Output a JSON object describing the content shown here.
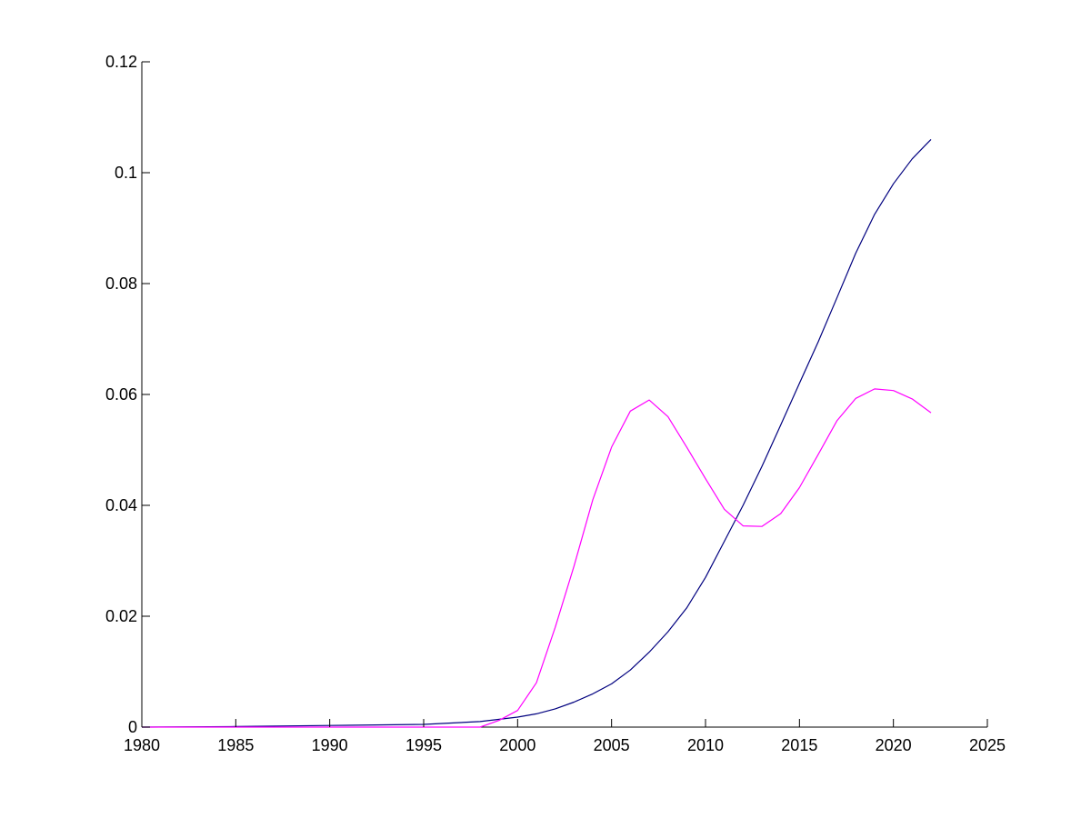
{
  "chart_data": {
    "type": "line",
    "xlim": [
      1980,
      2025
    ],
    "ylim": [
      0,
      0.12
    ],
    "xticks": [
      1980,
      1985,
      1990,
      1995,
      2000,
      2005,
      2010,
      2015,
      2020,
      2025
    ],
    "xtick_labels": [
      "1980",
      "1985",
      "1990",
      "1995",
      "2000",
      "2005",
      "2010",
      "2015",
      "2020",
      "2025"
    ],
    "yticks": [
      0,
      0.02,
      0.04,
      0.06,
      0.08,
      0.1,
      0.12
    ],
    "ytick_labels": [
      "0",
      "0.02",
      "0.04",
      "0.06",
      "0.08",
      "0.1",
      "0.12"
    ],
    "grid": false,
    "legend": "none",
    "series": [
      {
        "color": "#00007f",
        "x": [
          1980,
          1985,
          1990,
          1995,
          1998,
          2000,
          2001,
          2002,
          2003,
          2004,
          2005,
          2006,
          2007,
          2008,
          2009,
          2010,
          2011,
          2012,
          2013,
          2014,
          2015,
          2016,
          2017,
          2018,
          2019,
          2020,
          2021,
          2022
        ],
        "y": [
          0,
          0.0001,
          0.0003,
          0.0005,
          0.001,
          0.0018,
          0.0024,
          0.0033,
          0.0045,
          0.006,
          0.0078,
          0.0103,
          0.0135,
          0.0172,
          0.0215,
          0.027,
          0.0335,
          0.04,
          0.047,
          0.0545,
          0.062,
          0.0695,
          0.0775,
          0.0855,
          0.0925,
          0.098,
          0.1025,
          0.106
        ]
      },
      {
        "color": "#ff00ff",
        "x": [
          1980,
          1998,
          1999,
          2000,
          2001,
          2002,
          2003,
          2004,
          2005,
          2006,
          2007,
          2008,
          2009,
          2010,
          2011,
          2012,
          2013,
          2014,
          2015,
          2016,
          2017,
          2018,
          2019,
          2020,
          2021,
          2022
        ],
        "y": [
          0,
          0,
          0.0012,
          0.003,
          0.008,
          0.018,
          0.029,
          0.041,
          0.0505,
          0.057,
          0.059,
          0.056,
          0.0505,
          0.0448,
          0.0393,
          0.0363,
          0.0362,
          0.0385,
          0.0432,
          0.0492,
          0.0553,
          0.0593,
          0.061,
          0.0607,
          0.0592,
          0.0567
        ]
      }
    ]
  }
}
